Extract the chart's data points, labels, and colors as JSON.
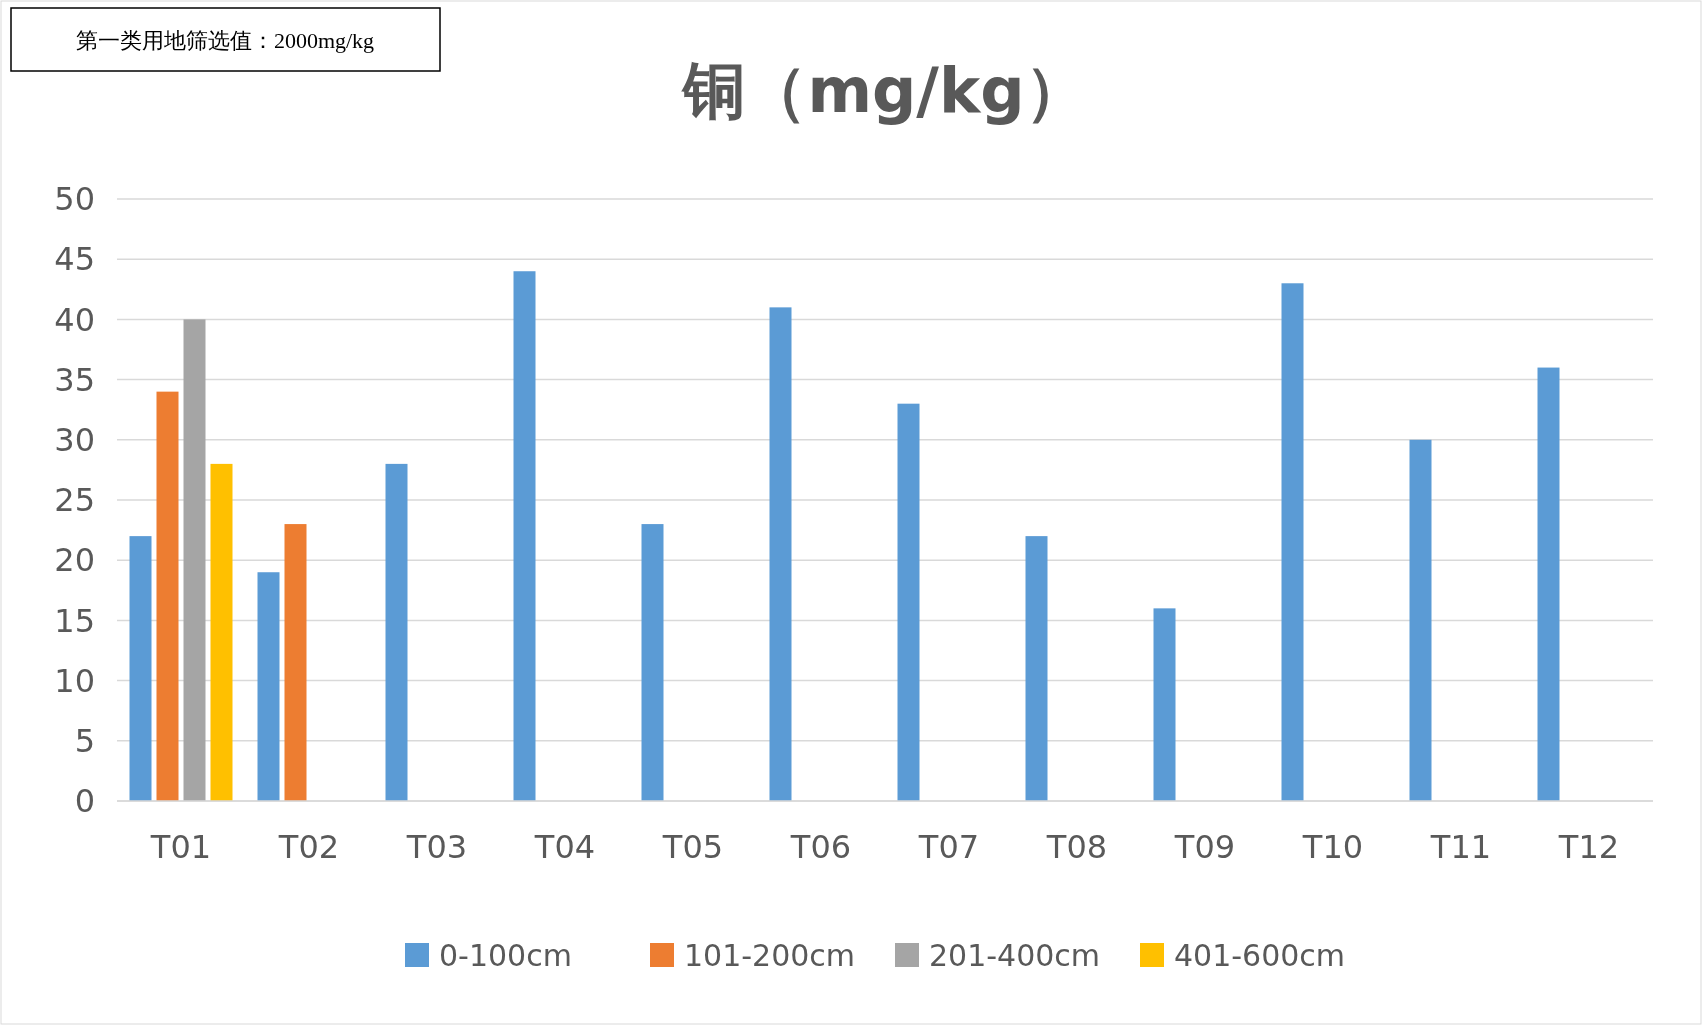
{
  "chart_data": {
    "type": "bar",
    "title": "铜（mg/kg）",
    "annotations": [
      "第一类用地筛选值：2000mg/kg"
    ],
    "categories": [
      "T01",
      "T02",
      "T03",
      "T04",
      "T05",
      "T06",
      "T07",
      "T08",
      "T09",
      "T10",
      "T11",
      "T12"
    ],
    "series": [
      {
        "name": "0-100cm",
        "color": "#5b9bd5",
        "values": [
          22,
          19,
          28,
          44,
          23,
          41,
          33,
          22,
          16,
          43,
          30,
          36
        ]
      },
      {
        "name": "101-200cm",
        "color": "#ed7d31",
        "values": [
          34,
          23,
          null,
          null,
          null,
          null,
          null,
          null,
          null,
          null,
          null,
          null
        ]
      },
      {
        "name": "201-400cm",
        "color": "#a5a5a5",
        "values": [
          40,
          null,
          null,
          null,
          null,
          null,
          null,
          null,
          null,
          null,
          null,
          null
        ]
      },
      {
        "name": "401-600cm",
        "color": "#ffc000",
        "values": [
          28,
          null,
          null,
          null,
          null,
          null,
          null,
          null,
          null,
          null,
          null,
          null
        ]
      }
    ],
    "ylim": [
      0,
      50
    ],
    "yticks": [
      0,
      5,
      10,
      15,
      20,
      25,
      30,
      35,
      40,
      45,
      50
    ],
    "grid": "y",
    "legend": "bottom"
  }
}
